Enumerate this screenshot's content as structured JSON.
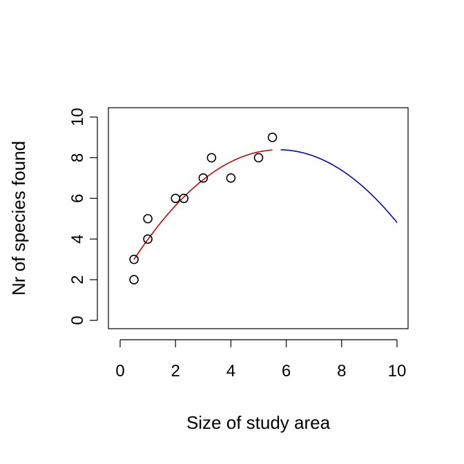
{
  "chart_data": {
    "type": "scatter",
    "xlabel": "Size of study area",
    "ylabel": "Nr of species found",
    "xlim": [
      0,
      10
    ],
    "ylim": [
      0,
      10
    ],
    "x_ticks": [
      0,
      2,
      4,
      6,
      8,
      10
    ],
    "y_ticks": [
      0,
      2,
      4,
      6,
      8,
      10
    ],
    "grid": false,
    "points": [
      {
        "x": 0.5,
        "y": 2
      },
      {
        "x": 0.5,
        "y": 3
      },
      {
        "x": 1.0,
        "y": 4
      },
      {
        "x": 1.0,
        "y": 5
      },
      {
        "x": 2.0,
        "y": 6
      },
      {
        "x": 2.3,
        "y": 6
      },
      {
        "x": 3.0,
        "y": 7
      },
      {
        "x": 3.3,
        "y": 8
      },
      {
        "x": 4.0,
        "y": 7
      },
      {
        "x": 5.0,
        "y": 8
      },
      {
        "x": 5.5,
        "y": 9
      }
    ],
    "fit_curve": {
      "model": "quadratic",
      "coefficients": {
        "a": -0.1968,
        "b": 2.257,
        "c": 1.9196
      },
      "segments": [
        {
          "x_range": [
            0.5,
            5.5
          ],
          "color": "#cc0000"
        },
        {
          "x_range": [
            5.8,
            10
          ],
          "color": "#0000cc"
        }
      ]
    }
  }
}
